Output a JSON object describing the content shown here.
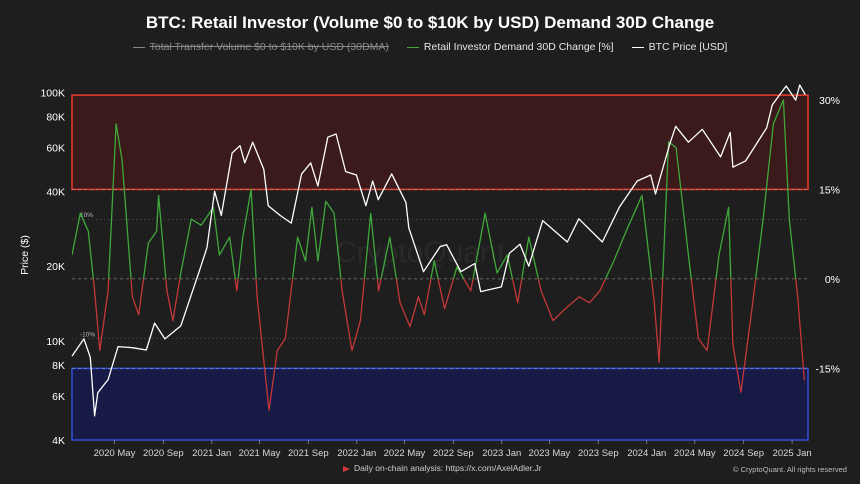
{
  "title": "BTC: Retail Investor (Volume $0 to $10K by USD) Demand 30D Change",
  "legend": [
    {
      "label": "Total Transfer Volume $0 to $10K by USD (30DMA)",
      "color": "#8a8a8a",
      "struck": true
    },
    {
      "label": "Retail Investor Demand 30D Change [%]",
      "color": "#3fa83a",
      "struck": false
    },
    {
      "label": "BTC Price [USD]",
      "color": "#ffffff",
      "struck": false
    }
  ],
  "watermark": "CryptoQuant",
  "footer_note": "Daily on-chain analysis: https://x.com/AxelAdler.Jr",
  "copyright": "© CryptoQuant. All rights reserved",
  "colors": {
    "green": "#3fa83a",
    "red": "#c43838",
    "price": "#ffffff",
    "top_zone_fill": "#3a1a1a",
    "top_zone_border": "#e0392b",
    "bottom_zone_fill": "#161a44",
    "bottom_zone_border": "#2f4bd8"
  },
  "chart_data": {
    "type": "line",
    "left_axis": {
      "label": "Price ($)",
      "scale": "log",
      "range": [
        4000,
        110000
      ],
      "ticks": [
        4000,
        6000,
        8000,
        10000,
        20000,
        40000,
        60000,
        80000,
        100000
      ],
      "tick_labels": [
        "4K",
        "6K",
        "8K",
        "10K",
        "20K",
        "40K",
        "60K",
        "80K",
        "100K"
      ]
    },
    "right_axis": {
      "range": [
        -27,
        33
      ],
      "ticks": [
        30,
        15,
        0,
        -15
      ],
      "tick_labels": [
        "30%",
        "15%",
        "0%",
        "-15%"
      ]
    },
    "x_axis": {
      "range": [
        "2020-01-15",
        "2025-02-10"
      ],
      "ticks": [
        "2020-05-01",
        "2020-09-01",
        "2021-01-01",
        "2021-05-01",
        "2021-09-01",
        "2022-01-01",
        "2022-05-01",
        "2022-09-01",
        "2023-01-01",
        "2023-05-01",
        "2023-09-01",
        "2024-01-01",
        "2024-05-01",
        "2024-09-01",
        "2025-01-01"
      ],
      "tick_labels": [
        "2020 May",
        "2020 Sep",
        "2021 Jan",
        "2021 May",
        "2021 Sep",
        "2022 Jan",
        "2022 May",
        "2022 Sep",
        "2023 Jan",
        "2023 May",
        "2023 Sep",
        "2024 Jan",
        "2024 May",
        "2024 Sep",
        "2025 Jan"
      ]
    },
    "inner_labels": [
      {
        "text": "10%",
        "value": 10
      },
      {
        "text": "-10%",
        "value": -10
      }
    ],
    "zones": [
      {
        "name": "overheated",
        "from": 15,
        "to": 30.8
      },
      {
        "name": "oversold",
        "from": -15,
        "to": -27
      }
    ],
    "series": [
      {
        "name": "BTC Price [USD]",
        "axis": "left",
        "points": [
          [
            "2020-01-15",
            8700
          ],
          [
            "2020-02-14",
            10200
          ],
          [
            "2020-03-01",
            8600
          ],
          [
            "2020-03-12",
            5000
          ],
          [
            "2020-03-20",
            6200
          ],
          [
            "2020-04-15",
            7000
          ],
          [
            "2020-05-10",
            9500
          ],
          [
            "2020-06-15",
            9400
          ],
          [
            "2020-07-20",
            9200
          ],
          [
            "2020-08-10",
            11800
          ],
          [
            "2020-09-05",
            10200
          ],
          [
            "2020-10-15",
            11500
          ],
          [
            "2020-11-10",
            15300
          ],
          [
            "2020-12-01",
            19200
          ],
          [
            "2020-12-20",
            23800
          ],
          [
            "2021-01-08",
            40000
          ],
          [
            "2021-01-25",
            32000
          ],
          [
            "2021-02-21",
            57000
          ],
          [
            "2021-03-13",
            61000
          ],
          [
            "2021-03-25",
            52000
          ],
          [
            "2021-04-14",
            63000
          ],
          [
            "2021-05-12",
            49000
          ],
          [
            "2021-05-23",
            35000
          ],
          [
            "2021-06-22",
            32000
          ],
          [
            "2021-07-20",
            29800
          ],
          [
            "2021-08-15",
            47000
          ],
          [
            "2021-09-07",
            52000
          ],
          [
            "2021-09-25",
            42000
          ],
          [
            "2021-10-20",
            66000
          ],
          [
            "2021-11-10",
            68000
          ],
          [
            "2021-12-04",
            48000
          ],
          [
            "2021-12-31",
            46500
          ],
          [
            "2022-01-24",
            35000
          ],
          [
            "2022-02-10",
            44000
          ],
          [
            "2022-02-24",
            37000
          ],
          [
            "2022-03-30",
            47000
          ],
          [
            "2022-05-05",
            36000
          ],
          [
            "2022-05-12",
            28500
          ],
          [
            "2022-06-18",
            19000
          ],
          [
            "2022-07-30",
            24000
          ],
          [
            "2022-08-15",
            24400
          ],
          [
            "2022-09-20",
            19000
          ],
          [
            "2022-10-25",
            20500
          ],
          [
            "2022-11-09",
            15800
          ],
          [
            "2022-12-31",
            16500
          ],
          [
            "2023-01-20",
            22500
          ],
          [
            "2023-02-16",
            24500
          ],
          [
            "2023-03-10",
            20000
          ],
          [
            "2023-04-14",
            30500
          ],
          [
            "2023-06-15",
            25000
          ],
          [
            "2023-07-14",
            31000
          ],
          [
            "2023-09-11",
            25000
          ],
          [
            "2023-10-24",
            34500
          ],
          [
            "2023-12-08",
            44000
          ],
          [
            "2024-01-11",
            46500
          ],
          [
            "2024-01-23",
            39000
          ],
          [
            "2024-02-28",
            62000
          ],
          [
            "2024-03-14",
            73000
          ],
          [
            "2024-04-15",
            63000
          ],
          [
            "2024-05-20",
            71000
          ],
          [
            "2024-07-05",
            55000
          ],
          [
            "2024-07-29",
            69000
          ],
          [
            "2024-08-05",
            50000
          ],
          [
            "2024-09-06",
            53000
          ],
          [
            "2024-10-29",
            72000
          ],
          [
            "2024-11-12",
            89000
          ],
          [
            "2024-12-17",
            106000
          ],
          [
            "2025-01-10",
            93000
          ],
          [
            "2025-01-20",
            107000
          ],
          [
            "2025-02-03",
            98000
          ]
        ]
      },
      {
        "name": "Retail Investor Demand 30D Change [%]",
        "axis": "right",
        "points": [
          [
            "2020-01-15",
            4
          ],
          [
            "2020-02-05",
            11
          ],
          [
            "2020-02-25",
            8
          ],
          [
            "2020-03-12",
            -2
          ],
          [
            "2020-03-25",
            -12
          ],
          [
            "2020-04-15",
            -2
          ],
          [
            "2020-05-05",
            26
          ],
          [
            "2020-05-20",
            20
          ],
          [
            "2020-06-15",
            -3
          ],
          [
            "2020-07-01",
            -6
          ],
          [
            "2020-07-25",
            6
          ],
          [
            "2020-08-15",
            8
          ],
          [
            "2020-08-20",
            14
          ],
          [
            "2020-09-10",
            -2
          ],
          [
            "2020-09-25",
            -7
          ],
          [
            "2020-10-15",
            1
          ],
          [
            "2020-11-10",
            10
          ],
          [
            "2020-12-05",
            9
          ],
          [
            "2021-01-05",
            12
          ],
          [
            "2021-01-20",
            4
          ],
          [
            "2021-02-15",
            7
          ],
          [
            "2021-03-05",
            -2
          ],
          [
            "2021-03-20",
            7
          ],
          [
            "2021-04-10",
            15
          ],
          [
            "2021-04-25",
            -3
          ],
          [
            "2021-05-25",
            -22
          ],
          [
            "2021-06-15",
            -12
          ],
          [
            "2021-07-05",
            -10
          ],
          [
            "2021-08-05",
            7
          ],
          [
            "2021-08-25",
            3
          ],
          [
            "2021-09-10",
            12
          ],
          [
            "2021-09-25",
            3
          ],
          [
            "2021-10-15",
            13
          ],
          [
            "2021-11-05",
            11
          ],
          [
            "2021-11-25",
            -2
          ],
          [
            "2021-12-20",
            -12
          ],
          [
            "2022-01-10",
            -7
          ],
          [
            "2022-02-05",
            11
          ],
          [
            "2022-02-25",
            -2
          ],
          [
            "2022-03-25",
            7
          ],
          [
            "2022-04-20",
            -4
          ],
          [
            "2022-05-15",
            -8
          ],
          [
            "2022-06-05",
            -3
          ],
          [
            "2022-06-20",
            -6
          ],
          [
            "2022-07-15",
            3
          ],
          [
            "2022-08-10",
            -5
          ],
          [
            "2022-09-10",
            2
          ],
          [
            "2022-10-15",
            -2
          ],
          [
            "2022-11-20",
            11
          ],
          [
            "2022-12-20",
            1
          ],
          [
            "2023-01-15",
            4
          ],
          [
            "2023-02-10",
            -4
          ],
          [
            "2023-03-10",
            7
          ],
          [
            "2023-04-10",
            -2
          ],
          [
            "2023-05-10",
            -7
          ],
          [
            "2023-06-10",
            -5
          ],
          [
            "2023-07-15",
            -3
          ],
          [
            "2023-08-10",
            -4
          ],
          [
            "2023-09-05",
            -2
          ],
          [
            "2023-10-10",
            3
          ],
          [
            "2023-11-10",
            8
          ],
          [
            "2023-12-20",
            14
          ],
          [
            "2024-01-20",
            -4
          ],
          [
            "2024-02-01",
            -14
          ],
          [
            "2024-02-25",
            23
          ],
          [
            "2024-03-15",
            22
          ],
          [
            "2024-04-15",
            4
          ],
          [
            "2024-05-10",
            -10
          ],
          [
            "2024-06-01",
            -12
          ],
          [
            "2024-07-01",
            4
          ],
          [
            "2024-07-25",
            12
          ],
          [
            "2024-08-05",
            -11
          ],
          [
            "2024-08-25",
            -19
          ],
          [
            "2024-09-20",
            -6
          ],
          [
            "2024-10-20",
            10
          ],
          [
            "2024-11-15",
            26
          ],
          [
            "2024-12-10",
            30
          ],
          [
            "2024-12-25",
            10
          ],
          [
            "2025-01-15",
            -3
          ],
          [
            "2025-02-01",
            -17
          ]
        ]
      }
    ]
  }
}
